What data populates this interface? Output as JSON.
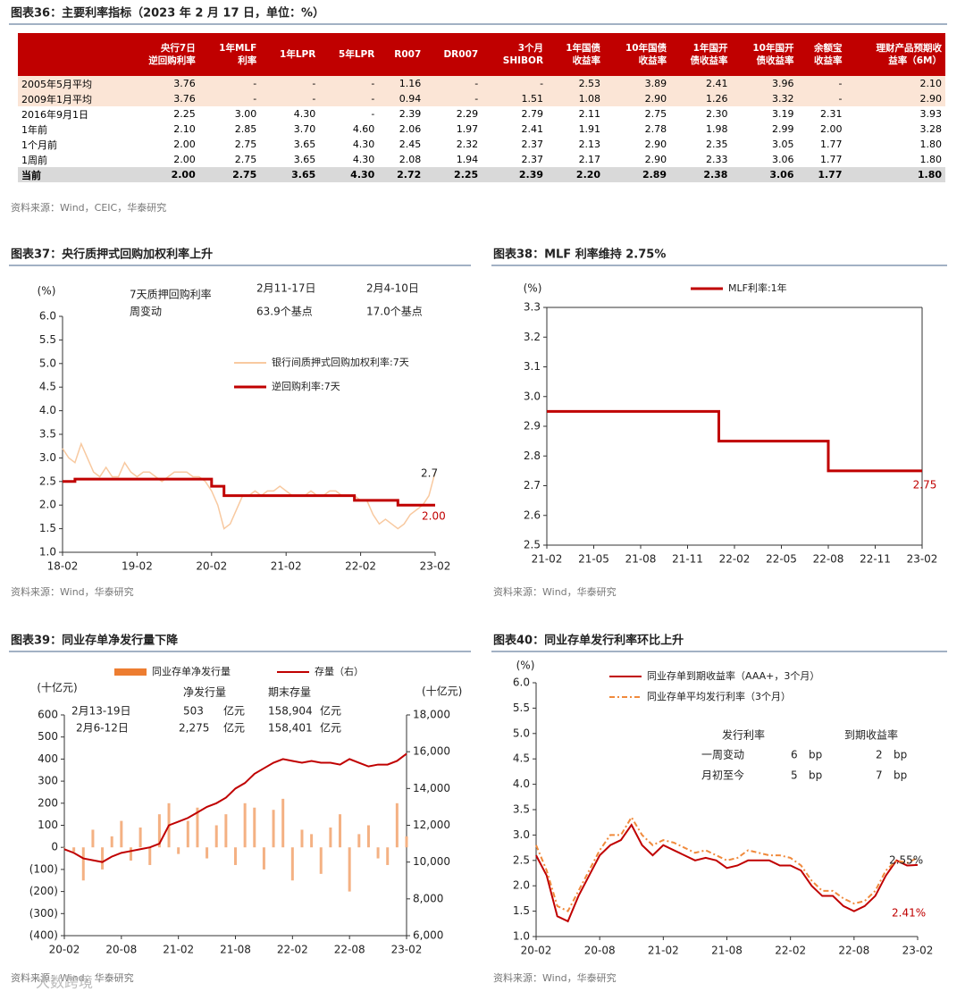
{
  "table_section": {
    "title": "图表36：主要利率指标（2023 年 2 月 17 日，单位：%）",
    "columns": [
      "央行7日\n逆回购利率",
      "1年MLF\n利率",
      "1年LPR",
      "5年LPR",
      "R007",
      "DR007",
      "3个月\nSHIBOR",
      "1年国债\n收益率",
      "10年国债\n收益率",
      "1年国开\n债收益率",
      "10年国开\n债收益率",
      "余额宝\n收益率",
      "理财产品预期收\n益率（6M）"
    ],
    "rows": [
      [
        "2005年5月平均",
        "3.76",
        "-",
        "-",
        "-",
        "1.16",
        "-",
        "-",
        "2.53",
        "3.89",
        "2.41",
        "3.96",
        "-",
        "2.10"
      ],
      [
        "2009年1月平均",
        "3.76",
        "-",
        "-",
        "-",
        "0.94",
        "-",
        "1.51",
        "1.08",
        "2.90",
        "1.26",
        "3.32",
        "-",
        "2.90"
      ],
      [
        "2016年9月1日",
        "2.25",
        "3.00",
        "4.30",
        "-",
        "2.39",
        "2.29",
        "2.79",
        "2.11",
        "2.75",
        "2.30",
        "3.19",
        "2.31",
        "3.93"
      ],
      [
        "1年前",
        "2.10",
        "2.85",
        "3.70",
        "4.60",
        "2.06",
        "1.97",
        "2.41",
        "1.91",
        "2.78",
        "1.98",
        "2.99",
        "2.00",
        "3.28"
      ],
      [
        "1个月前",
        "2.00",
        "2.75",
        "3.65",
        "4.30",
        "2.45",
        "2.32",
        "2.37",
        "2.13",
        "2.90",
        "2.35",
        "3.05",
        "1.77",
        "1.80"
      ],
      [
        "1周前",
        "2.00",
        "2.75",
        "3.65",
        "4.30",
        "2.08",
        "1.94",
        "2.37",
        "2.17",
        "2.90",
        "2.33",
        "3.06",
        "1.77",
        "1.80"
      ],
      [
        "当前",
        "2.00",
        "2.75",
        "3.65",
        "4.30",
        "2.72",
        "2.25",
        "2.39",
        "2.20",
        "2.89",
        "2.38",
        "3.06",
        "1.77",
        "1.80"
      ]
    ],
    "source": "资料来源：Wind，CEIC，华泰研究"
  },
  "chart_data": [
    {
      "type": "line",
      "figure_title": "图表37：央行质押式回购加权利率上升",
      "y_label": "(%)",
      "legend": "upper right",
      "x": [
        "18-02",
        null,
        null,
        null,
        null,
        null,
        null,
        null,
        null,
        null,
        null,
        null,
        "19-02",
        null,
        null,
        null,
        null,
        null,
        null,
        null,
        null,
        null,
        null,
        null,
        "20-02",
        null,
        null,
        null,
        null,
        null,
        null,
        null,
        null,
        null,
        null,
        null,
        "21-02",
        null,
        null,
        null,
        null,
        null,
        null,
        null,
        null,
        null,
        null,
        null,
        "22-02",
        null,
        null,
        null,
        null,
        null,
        null,
        null,
        null,
        null,
        null,
        null,
        "23-02"
      ],
      "series": [
        {
          "name": "银行间质押式回购加权利率:7天",
          "color": "#f8c9a0",
          "values": [
            3.2,
            3.0,
            2.9,
            3.3,
            3.0,
            2.7,
            2.6,
            2.8,
            2.6,
            2.6,
            2.9,
            2.7,
            2.6,
            2.7,
            2.7,
            2.6,
            2.5,
            2.6,
            2.7,
            2.7,
            2.7,
            2.6,
            2.6,
            2.5,
            2.3,
            2.0,
            1.5,
            1.6,
            1.9,
            2.2,
            2.2,
            2.3,
            2.2,
            2.3,
            2.3,
            2.4,
            2.3,
            2.2,
            2.2,
            2.2,
            2.3,
            2.2,
            2.2,
            2.3,
            2.3,
            2.2,
            2.2,
            2.2,
            2.1,
            2.1,
            1.8,
            1.6,
            1.7,
            1.6,
            1.5,
            1.6,
            1.8,
            1.9,
            2.0,
            2.2,
            2.7
          ]
        },
        {
          "name": "逆回购利率:7天",
          "color": "#c00000",
          "line_style": "step",
          "values": [
            2.5,
            2.5,
            2.55,
            2.55,
            2.55,
            2.55,
            2.55,
            2.55,
            2.55,
            2.55,
            2.55,
            2.55,
            2.55,
            2.55,
            2.55,
            2.55,
            2.55,
            2.55,
            2.55,
            2.55,
            2.55,
            2.55,
            2.55,
            2.55,
            2.4,
            2.4,
            2.2,
            2.2,
            2.2,
            2.2,
            2.2,
            2.2,
            2.2,
            2.2,
            2.2,
            2.2,
            2.2,
            2.2,
            2.2,
            2.2,
            2.2,
            2.2,
            2.2,
            2.2,
            2.2,
            2.2,
            2.2,
            2.1,
            2.1,
            2.1,
            2.1,
            2.1,
            2.1,
            2.1,
            2.0,
            2.0,
            2.0,
            2.0,
            2.0,
            2.0,
            2.0
          ]
        }
      ],
      "ylim": [
        1.0,
        6.0
      ],
      "yticks": [
        {
          "value": 1,
          "label": "1.0"
        },
        1.5,
        {
          "value": 2,
          "label": "2.0"
        },
        2.5,
        {
          "value": 3,
          "label": "3.0"
        },
        3.5,
        {
          "value": 4,
          "label": "4.0"
        },
        4.5,
        {
          "value": 5,
          "label": "5.0"
        },
        5.5,
        {
          "value": 6,
          "label": "6.0"
        }
      ],
      "annotations": [
        "7天质押回购利率",
        "周变动",
        "2月11-17日",
        "63.9个基点",
        "2月4-10日",
        "17.0个基点",
        "2.7",
        "2.00"
      ],
      "source": "资料来源：Wind，华泰研究"
    },
    {
      "type": "line",
      "figure_title": "图表38：MLF 利率维持 2.75%",
      "y_label": "(%)",
      "legend": "upper center",
      "frame": true,
      "x": [
        "21-02",
        null,
        null,
        "21-05",
        null,
        null,
        "21-08",
        null,
        null,
        "21-11",
        null,
        null,
        "22-02",
        null,
        null,
        "22-05",
        null,
        null,
        "22-08",
        null,
        null,
        "22-11",
        null,
        null,
        "23-02"
      ],
      "series": [
        {
          "name": "MLF利率:1年",
          "color": "#c00000",
          "line_style": "step",
          "values": [
            2.95,
            2.95,
            2.95,
            2.95,
            2.95,
            2.95,
            2.95,
            2.95,
            2.95,
            2.95,
            2.95,
            2.85,
            2.85,
            2.85,
            2.85,
            2.85,
            2.85,
            2.85,
            2.75,
            2.75,
            2.75,
            2.75,
            2.75,
            2.75,
            2.75
          ]
        }
      ],
      "ylim": [
        2.5,
        3.3
      ],
      "yticks": [
        2.5,
        2.6,
        2.7,
        2.8,
        2.9,
        {
          "value": 3,
          "label": "3.0"
        },
        3.1,
        3.2,
        3.3
      ],
      "annotations": [
        "2.75"
      ],
      "source": "资料来源：Wind，华泰研究"
    },
    {
      "type": "combo",
      "figure_title": "图表39：同业存单净发行量下降",
      "y_label": "(十亿元)",
      "y2_label": "(十亿元)",
      "legend": "top",
      "x": [
        "20-02",
        null,
        null,
        null,
        null,
        null,
        "20-08",
        null,
        null,
        null,
        null,
        null,
        "21-02",
        null,
        null,
        null,
        null,
        null,
        "21-08",
        null,
        null,
        null,
        null,
        null,
        "22-02",
        null,
        null,
        null,
        null,
        null,
        "22-08",
        null,
        null,
        null,
        null,
        null,
        "23-02"
      ],
      "series": [
        {
          "name": "同业存单净发行量",
          "type": "bar",
          "color": "#f4b183",
          "legend_color": "#ed7d31",
          "values": [
            0,
            -20,
            -150,
            80,
            -100,
            50,
            120,
            -60,
            90,
            -80,
            150,
            200,
            -30,
            120,
            180,
            -50,
            100,
            150,
            -80,
            200,
            180,
            -100,
            170,
            220,
            -150,
            80,
            60,
            -120,
            90,
            150,
            -200,
            60,
            100,
            -50,
            -80,
            200,
            50
          ]
        },
        {
          "name": "存量（右）",
          "type": "line",
          "axis": "y2",
          "color": "#c00000",
          "values": [
            10700,
            10500,
            10200,
            10100,
            10000,
            10300,
            10500,
            10600,
            10700,
            10800,
            11000,
            12000,
            12200,
            12400,
            12700,
            13000,
            13200,
            13500,
            14000,
            14300,
            14800,
            15100,
            15400,
            15600,
            15500,
            15400,
            15500,
            15400,
            15400,
            15300,
            15600,
            15400,
            15200,
            15300,
            15300,
            15500,
            15890
          ]
        }
      ],
      "ylim": [
        -400,
        600
      ],
      "yticks": [
        {
          "value": -400,
          "label": "(400)"
        },
        {
          "value": -300,
          "label": "(300)"
        },
        {
          "value": -200,
          "label": "(200)"
        },
        {
          "value": -100,
          "label": "(100)"
        },
        0,
        100,
        200,
        300,
        400,
        500,
        600
      ],
      "y2lim": [
        6000,
        18000
      ],
      "y2ticks": [
        {
          "value": 6000,
          "label": "6,000"
        },
        {
          "value": 8000,
          "label": "8,000"
        },
        {
          "value": 10000,
          "label": "10,000"
        },
        {
          "value": 12000,
          "label": "12,000"
        },
        {
          "value": 14000,
          "label": "14,000"
        },
        {
          "value": 16000,
          "label": "16,000"
        },
        {
          "value": 18000,
          "label": "18,000"
        }
      ],
      "annotations": [
        "净发行量",
        "期末存量",
        "2月13-19日",
        "503",
        "亿元",
        "158,904",
        "亿元",
        "2月6-12日",
        "2,275",
        "亿元",
        "158,401",
        "亿元"
      ],
      "source": "资料来源：Wind，华泰研究"
    },
    {
      "type": "line",
      "figure_title": "图表40：同业存单发行利率环比上升",
      "y_label": "(%)",
      "legend": "upper left",
      "x": [
        "20-02",
        null,
        null,
        null,
        null,
        null,
        "20-08",
        null,
        null,
        null,
        null,
        null,
        "21-02",
        null,
        null,
        null,
        null,
        null,
        "21-08",
        null,
        null,
        null,
        null,
        null,
        "22-02",
        null,
        null,
        null,
        null,
        null,
        "22-08",
        null,
        null,
        null,
        null,
        null,
        "23-02"
      ],
      "series": [
        {
          "name": "同业存单到期收益率（AAA+，3个月）",
          "color": "#c00000",
          "values": [
            2.6,
            2.2,
            1.4,
            1.3,
            1.8,
            2.2,
            2.6,
            2.8,
            2.9,
            3.2,
            2.8,
            2.6,
            2.8,
            2.7,
            2.6,
            2.5,
            2.55,
            2.5,
            2.35,
            2.4,
            2.5,
            2.5,
            2.5,
            2.4,
            2.4,
            2.3,
            2.0,
            1.8,
            1.8,
            1.6,
            1.5,
            1.6,
            1.8,
            2.2,
            2.5,
            2.4,
            2.41
          ]
        },
        {
          "name": "同业存单平均发行利率（3个月）",
          "color": "#f08a3c",
          "line_style": "dash-dot",
          "values": [
            2.8,
            2.3,
            1.6,
            1.5,
            1.9,
            2.3,
            2.7,
            3.0,
            3.0,
            3.35,
            3.0,
            2.8,
            2.9,
            2.85,
            2.75,
            2.65,
            2.7,
            2.6,
            2.5,
            2.55,
            2.7,
            2.65,
            2.6,
            2.6,
            2.55,
            2.4,
            2.1,
            1.9,
            1.9,
            1.75,
            1.65,
            1.7,
            1.9,
            2.3,
            2.5,
            2.45,
            2.55
          ]
        }
      ],
      "ylim": [
        1.0,
        6.0
      ],
      "yticks": [
        {
          "value": 1,
          "label": "1.0"
        },
        1.5,
        {
          "value": 2,
          "label": "2.0"
        },
        2.5,
        {
          "value": 3,
          "label": "3.0"
        },
        3.5,
        {
          "value": 4,
          "label": "4.0"
        },
        4.5,
        {
          "value": 5,
          "label": "5.0"
        },
        5.5,
        {
          "value": 6,
          "label": "6.0"
        }
      ],
      "annotations": [
        "发行利率",
        "到期收益率",
        "一周变动",
        "6",
        "bp",
        "2",
        "bp",
        "月初至今",
        "5",
        "bp",
        "7",
        "bp",
        "2.55%",
        "2.41%"
      ],
      "source": "资料来源：Wind，华泰研究"
    }
  ],
  "watermark": "大数跨境"
}
